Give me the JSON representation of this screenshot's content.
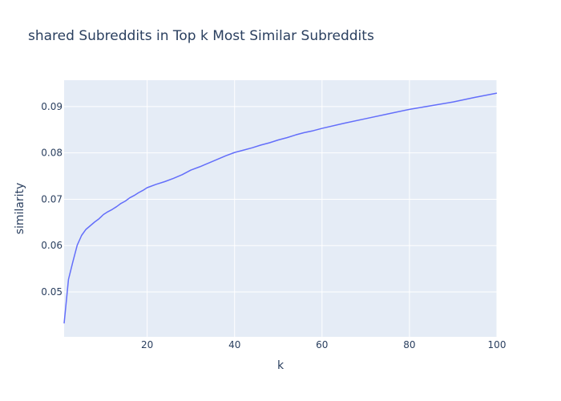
{
  "chart_data": {
    "type": "line",
    "title": "shared Subreddits in Top k Most Similar Subreddits",
    "xlabel": "k",
    "ylabel": "similarity",
    "xlim": [
      1,
      100
    ],
    "ylim": [
      0.0403,
      0.0957
    ],
    "x_ticks": [
      20,
      40,
      60,
      80,
      100
    ],
    "y_ticks": [
      0.05,
      0.06,
      0.07,
      0.08,
      0.09
    ],
    "x_tick_labels": [
      "20",
      "40",
      "60",
      "80",
      "100"
    ],
    "y_tick_labels": [
      "0.05",
      "0.06",
      "0.07",
      "0.08",
      "0.09"
    ],
    "grid": true,
    "background": "#e5ecf6",
    "gridcolor": "#ffffff",
    "series": [
      {
        "color": "#636efa",
        "x": [
          1,
          2,
          3,
          4,
          5,
          6,
          7,
          8,
          9,
          10,
          11,
          12,
          13,
          14,
          15,
          16,
          17,
          18,
          19,
          20,
          22,
          24,
          26,
          28,
          30,
          32,
          34,
          36,
          38,
          40,
          42,
          44,
          46,
          48,
          50,
          52,
          54,
          56,
          58,
          60,
          65,
          70,
          75,
          80,
          85,
          90,
          95,
          100
        ],
        "y": [
          0.0432,
          0.0527,
          0.0565,
          0.0601,
          0.0622,
          0.0635,
          0.0643,
          0.0651,
          0.0658,
          0.0667,
          0.0673,
          0.0678,
          0.0684,
          0.0691,
          0.0696,
          0.0703,
          0.0708,
          0.0714,
          0.0719,
          0.0725,
          0.0732,
          0.0738,
          0.0745,
          0.0753,
          0.0763,
          0.077,
          0.0778,
          0.0786,
          0.0794,
          0.0801,
          0.0806,
          0.0811,
          0.0817,
          0.0822,
          0.0828,
          0.0833,
          0.0839,
          0.0844,
          0.0848,
          0.0853,
          0.0864,
          0.0874,
          0.0884,
          0.0894,
          0.0902,
          0.091,
          0.092,
          0.0929
        ]
      }
    ]
  }
}
